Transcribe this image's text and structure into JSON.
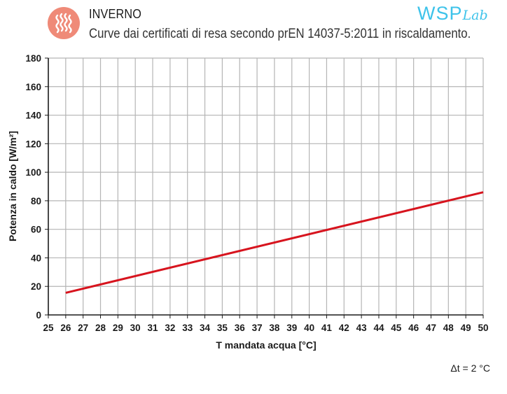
{
  "header": {
    "title": "INVERNO",
    "subtitle": "Curve dai certificati di resa secondo prEN 14037-5:2011 in riscaldamento.",
    "icon": "heat-waves-icon",
    "icon_color": "#ef8a78"
  },
  "brand": {
    "name": "WSP",
    "suffix": "Lab",
    "color": "#3ec3ea"
  },
  "note": "Δt = 2 °C",
  "chart_data": {
    "type": "line",
    "xlabel": "T mandata acqua [°C]",
    "ylabel": "Potenza in caldo [W/m²]",
    "xlim": [
      25,
      50
    ],
    "ylim": [
      0,
      180
    ],
    "x_ticks": [
      25,
      26,
      27,
      28,
      29,
      30,
      31,
      32,
      33,
      34,
      35,
      36,
      37,
      38,
      39,
      40,
      41,
      42,
      43,
      44,
      45,
      46,
      47,
      48,
      49,
      50
    ],
    "y_ticks": [
      0,
      20,
      40,
      60,
      80,
      100,
      120,
      140,
      160,
      180
    ],
    "grid": true,
    "series": [
      {
        "color": "#d7141e",
        "x": [
          26,
          50
        ],
        "y": [
          15.5,
          86
        ]
      }
    ]
  }
}
